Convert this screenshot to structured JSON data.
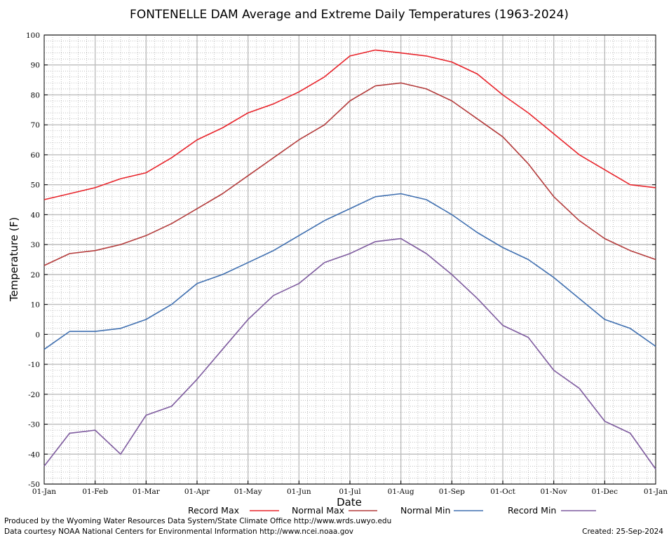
{
  "chart_data": {
    "type": "line",
    "title": "FONTENELLE DAM Average and Extreme Daily Temperatures (1963-2024)",
    "xlabel": "Date",
    "ylabel": "Temperature (F)",
    "ylim": [
      -50,
      100
    ],
    "yticks": [
      -50,
      -40,
      -30,
      -20,
      -10,
      0,
      10,
      20,
      30,
      40,
      50,
      60,
      70,
      80,
      90,
      100
    ],
    "xlim": [
      "01-Jan",
      "01-Jan"
    ],
    "xtick_labels": [
      "01-Jan",
      "01-Feb",
      "01-Mar",
      "01-Apr",
      "01-May",
      "01-Jun",
      "01-Jul",
      "01-Aug",
      "01-Sep",
      "01-Oct",
      "01-Nov",
      "01-Dec",
      "01-Jan"
    ],
    "x": [
      "01-Jan",
      "15-Jan",
      "01-Feb",
      "15-Feb",
      "01-Mar",
      "15-Mar",
      "01-Apr",
      "15-Apr",
      "01-May",
      "15-May",
      "01-Jun",
      "15-Jun",
      "01-Jul",
      "15-Jul",
      "01-Aug",
      "15-Aug",
      "01-Sep",
      "15-Sep",
      "01-Oct",
      "15-Oct",
      "01-Nov",
      "15-Nov",
      "01-Dec",
      "15-Dec",
      "01-Jan"
    ],
    "grid": true,
    "legend_position": "bottom",
    "series": [
      {
        "name": "Record Max",
        "color": "#e8232a",
        "values": [
          45,
          47,
          49,
          52,
          54,
          59,
          65,
          69,
          74,
          77,
          81,
          86,
          93,
          95,
          94,
          93,
          91,
          87,
          80,
          74,
          67,
          60,
          55,
          50,
          49
        ]
      },
      {
        "name": "Normal Max",
        "color": "#b33a3a",
        "values": [
          23,
          27,
          28,
          30,
          33,
          37,
          42,
          47,
          53,
          59,
          65,
          70,
          78,
          83,
          84,
          82,
          78,
          72,
          66,
          57,
          46,
          38,
          32,
          28,
          25
        ]
      },
      {
        "name": "Normal Min",
        "color": "#3f6fb0",
        "values": [
          -5,
          1,
          1,
          2,
          5,
          10,
          17,
          20,
          24,
          28,
          33,
          38,
          42,
          46,
          47,
          45,
          40,
          34,
          29,
          25,
          19,
          12,
          5,
          2,
          -4
        ]
      },
      {
        "name": "Record Min",
        "color": "#7d5a9e",
        "values": [
          -44,
          -33,
          -32,
          -40,
          -27,
          -24,
          -15,
          -5,
          5,
          13,
          17,
          24,
          27,
          31,
          32,
          27,
          20,
          12,
          3,
          -1,
          -12,
          -18,
          -29,
          -33,
          -45
        ]
      }
    ]
  },
  "footer": {
    "producer": "Produced by the Wyoming Water Resources Data System/State Climate Office http://www.wrds.uwyo.edu",
    "courtesy": "Data courtesy NOAA National Centers for Environmental Information http://www.ncei.noaa.gov",
    "created": "Created:  25-Sep-2024"
  }
}
